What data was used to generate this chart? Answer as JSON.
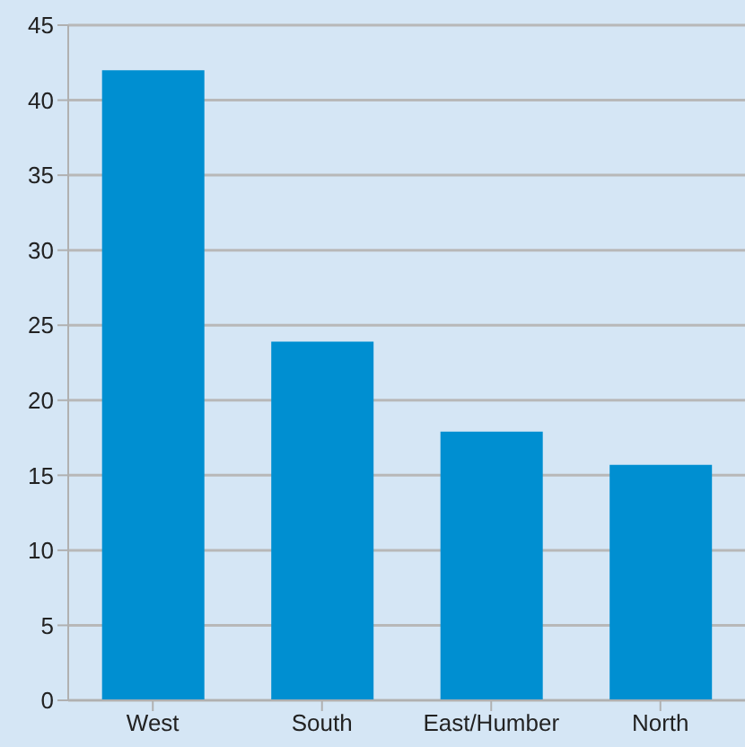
{
  "chart_data": {
    "type": "bar",
    "categories": [
      "West",
      "South",
      "East/Humber",
      "North"
    ],
    "values": [
      42,
      23.9,
      17.9,
      15.7
    ],
    "color": "#008fd1",
    "ylim": [
      0,
      45
    ],
    "yticks": [
      0,
      5,
      10,
      15,
      20,
      25,
      30,
      35,
      40,
      45
    ],
    "grid": "y"
  }
}
